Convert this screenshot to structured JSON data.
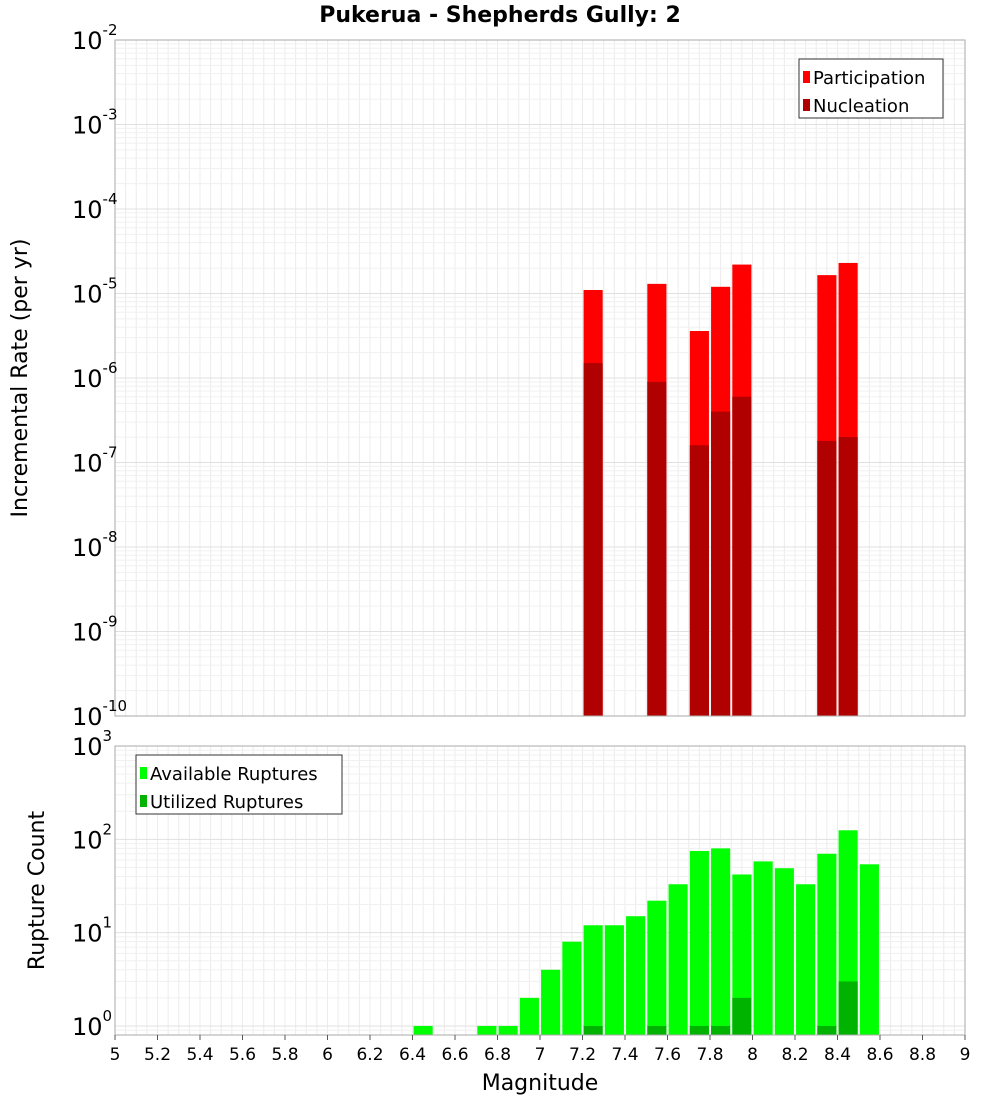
{
  "chart_data": [
    {
      "type": "bar",
      "title": "Pukerua - Shepherds Gully: 2",
      "xlabel": "Magnitude",
      "ylabel": "Incremental Rate (per yr)",
      "yscale": "log",
      "xlim": [
        5,
        9
      ],
      "ylim": [
        1e-10,
        0.01
      ],
      "y_tick_exponents": [
        -2,
        -3,
        -4,
        -5,
        -6,
        -7,
        -8,
        -9,
        -10
      ],
      "legend_position": "top-right",
      "bar_width": 0.09,
      "series": [
        {
          "name": "Participation",
          "color": "#ff0000",
          "x": [
            7.25,
            7.55,
            7.75,
            7.85,
            7.95,
            8.35,
            8.45
          ],
          "values": [
            1.1e-05,
            1.3e-05,
            3.6e-06,
            1.2e-05,
            2.2e-05,
            1.65e-05,
            2.3e-05
          ]
        },
        {
          "name": "Nucleation",
          "color": "#b00000",
          "x": [
            7.25,
            7.55,
            7.75,
            7.85,
            7.95,
            8.35,
            8.45
          ],
          "values": [
            1.5e-06,
            9e-07,
            1.6e-07,
            4e-07,
            6e-07,
            1.8e-07,
            2e-07
          ]
        }
      ]
    },
    {
      "type": "bar",
      "title": "",
      "xlabel": "Magnitude",
      "ylabel": "Rupture Count",
      "yscale": "log",
      "xlim": [
        5,
        9
      ],
      "ylim": [
        0.8,
        1000
      ],
      "y_tick_exponents": [
        3,
        2,
        1,
        0
      ],
      "x_ticks": [
        "5",
        "5.2",
        "5.4",
        "5.6",
        "5.8",
        "6",
        "6.2",
        "6.4",
        "6.6",
        "6.8",
        "7",
        "7.2",
        "7.4",
        "7.6",
        "7.8",
        "8",
        "8.2",
        "8.4",
        "8.6",
        "8.8",
        "9"
      ],
      "legend_position": "top-left",
      "bar_width": 0.09,
      "series": [
        {
          "name": "Available Ruptures",
          "color": "#00ff00",
          "x": [
            6.45,
            6.75,
            6.85,
            6.95,
            7.05,
            7.15,
            7.25,
            7.35,
            7.45,
            7.55,
            7.65,
            7.75,
            7.85,
            7.95,
            8.05,
            8.15,
            8.25,
            8.35,
            8.45,
            8.55
          ],
          "values": [
            1,
            1,
            1,
            2,
            4,
            8,
            12,
            12,
            15,
            22,
            33,
            75,
            80,
            42,
            58,
            49,
            33,
            70,
            125,
            54
          ]
        },
        {
          "name": "Utilized Ruptures",
          "color": "#00b300",
          "x": [
            7.25,
            7.55,
            7.75,
            7.85,
            7.95,
            8.35,
            8.45
          ],
          "values": [
            1,
            1,
            1,
            1,
            2,
            1,
            3
          ]
        }
      ]
    }
  ]
}
